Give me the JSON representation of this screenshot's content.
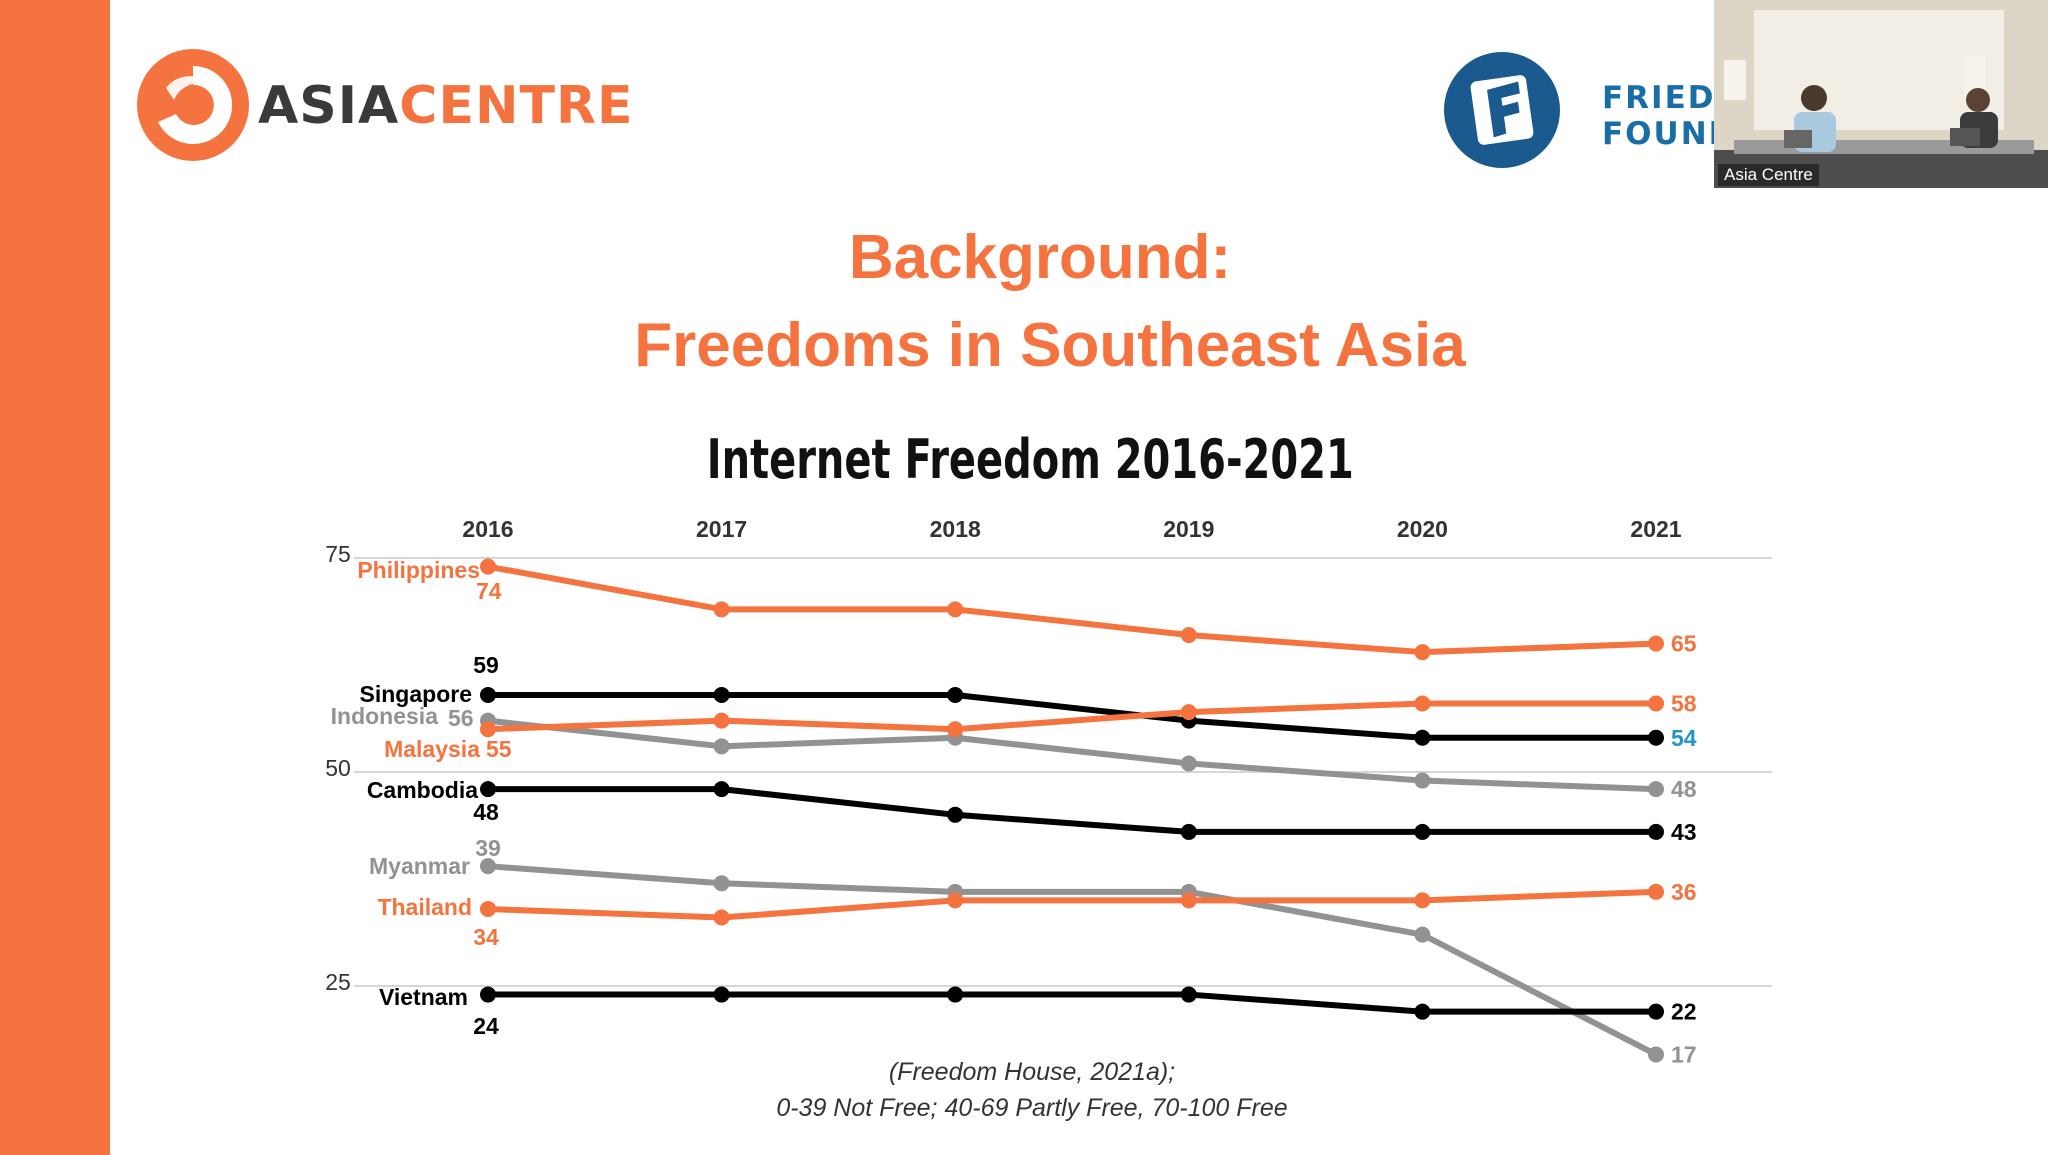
{
  "header": {
    "logo_word1": "ASIA",
    "logo_word2": "CENTRE",
    "partner_line1": "FRIEDR",
    "partner_line2": "FOUND",
    "video_label": "Asia Centre"
  },
  "slide": {
    "title_line1": "Background:",
    "title_line2": "Freedoms in Southeast Asia",
    "caption_line1": "(Freedom House, 2021a);",
    "caption_line2": "0-39 Not Free; 40-69 Partly Free, 70-100 Free"
  },
  "colors": {
    "accent": "#f4733f",
    "black": "#000000",
    "gray": "#929292",
    "blue": "#2196c4"
  },
  "chart_data": {
    "type": "line",
    "title": "Internet Freedom 2016-2021",
    "x": [
      "2016",
      "2017",
      "2018",
      "2019",
      "2020",
      "2021"
    ],
    "y_ticks": [
      "75",
      "50",
      "25"
    ],
    "ylim": [
      10,
      76
    ],
    "grid": true,
    "series": [
      {
        "name": "Philippines",
        "color": "#f4733f",
        "values": [
          74,
          69,
          69,
          66,
          64,
          65
        ],
        "start_label": "74",
        "end_label": "65",
        "end_label_color": "#f4733f"
      },
      {
        "name": "Singapore",
        "color": "#000000",
        "values": [
          59,
          59,
          59,
          56,
          54,
          54
        ],
        "start_label": "59",
        "end_label": "54",
        "end_label_color": "#2196c4"
      },
      {
        "name": "Indonesia",
        "color": "#929292",
        "values": [
          56,
          53,
          54,
          51,
          49,
          48
        ],
        "start_label": "56",
        "end_label": "48",
        "end_label_color": "#929292"
      },
      {
        "name": "Malaysia",
        "color": "#f4733f",
        "values": [
          55,
          56,
          55,
          57,
          58,
          58
        ],
        "start_label": "55",
        "end_label": "58",
        "end_label_color": "#f4733f"
      },
      {
        "name": "Cambodia",
        "color": "#000000",
        "values": [
          48,
          48,
          45,
          43,
          43,
          43
        ],
        "start_label": "48",
        "end_label": "43",
        "end_label_color": "#000000"
      },
      {
        "name": "Myanmar",
        "color": "#929292",
        "values": [
          39,
          37,
          36,
          36,
          31,
          17
        ],
        "start_label": "39",
        "end_label": "17",
        "end_label_color": "#929292"
      },
      {
        "name": "Thailand",
        "color": "#f4733f",
        "values": [
          34,
          33,
          35,
          35,
          35,
          36
        ],
        "start_label": "34",
        "end_label": "36",
        "end_label_color": "#f4733f"
      },
      {
        "name": "Vietnam",
        "color": "#000000",
        "values": [
          24,
          24,
          24,
          24,
          22,
          22
        ],
        "start_label": "24",
        "end_label": "22",
        "end_label_color": "#000000"
      }
    ]
  }
}
